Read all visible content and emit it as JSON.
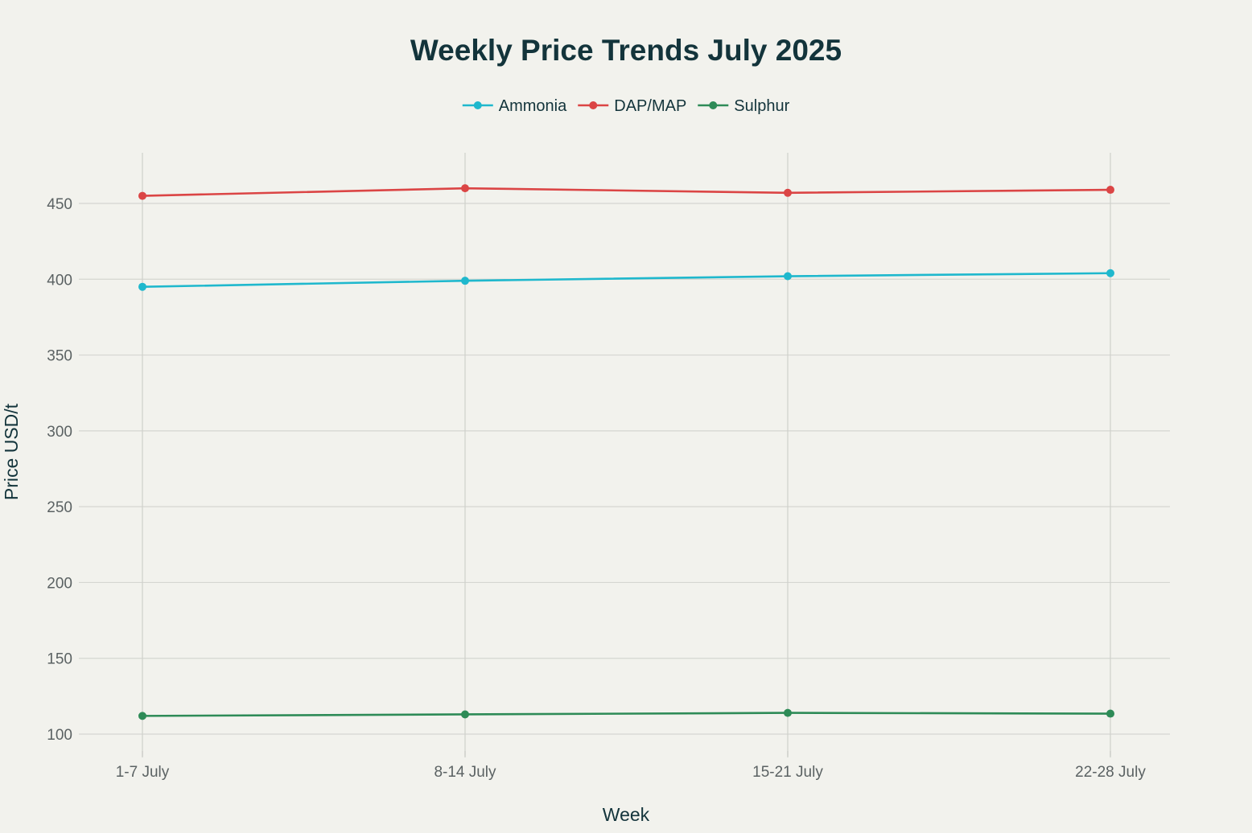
{
  "chart_data": {
    "type": "line",
    "title": "Weekly Price Trends July 2025",
    "xlabel": "Week",
    "ylabel": "Price USD/t",
    "categories": [
      "1-7 July",
      "8-14 July",
      "15-21 July",
      "22-28 July"
    ],
    "ylim": [
      85,
      483
    ],
    "yticks": [
      100,
      150,
      200,
      250,
      300,
      350,
      400,
      450
    ],
    "grid": true,
    "legend_position": "top-center",
    "series": [
      {
        "name": "Ammonia",
        "color": "#1fb8cd",
        "values": [
          395,
          399,
          402,
          404
        ]
      },
      {
        "name": "DAP/MAP",
        "color": "#db4545",
        "values": [
          455,
          460,
          457,
          459
        ]
      },
      {
        "name": "Sulphur",
        "color": "#2e8b57",
        "values": [
          112,
          113,
          114,
          113.5
        ]
      }
    ]
  }
}
